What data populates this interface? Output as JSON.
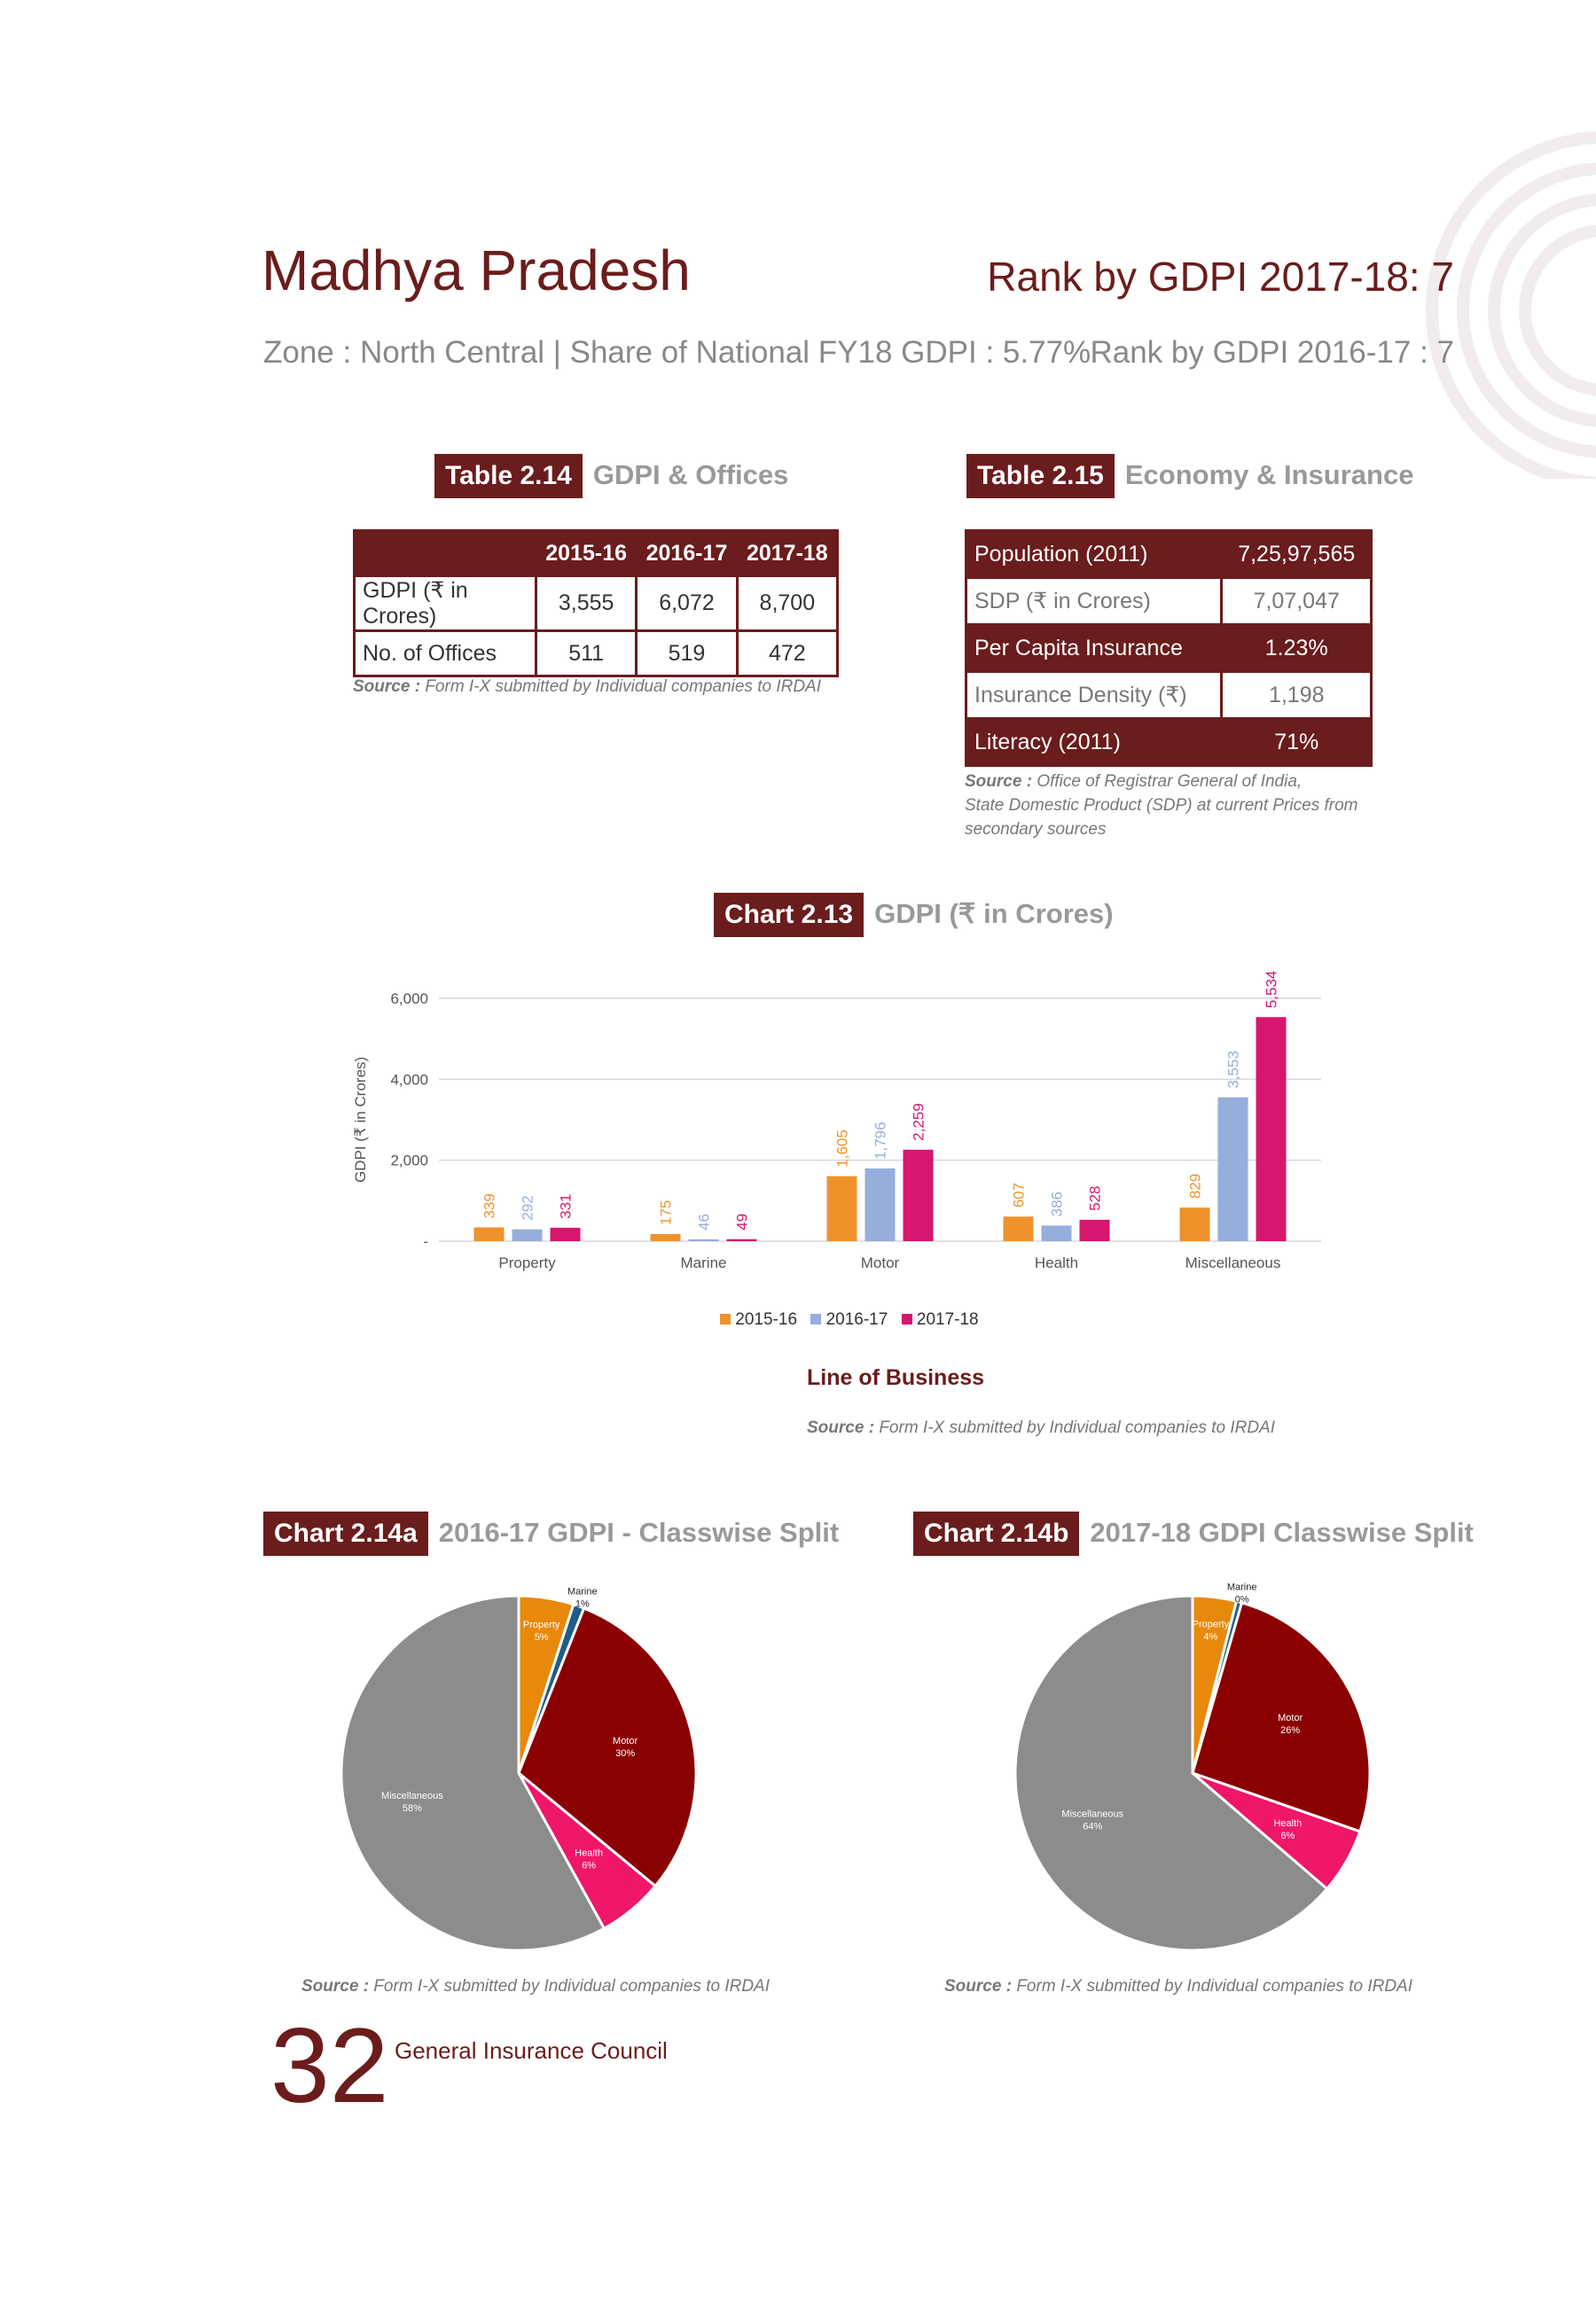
{
  "header": {
    "state": "Madhya Pradesh",
    "rank_fy18": "Rank by GDPI 2017-18: 7",
    "zone_share": "Zone : North Central | Share of National FY18 GDPI : 5.77%",
    "rank_fy17": "Rank by GDPI 2016-17 : 7"
  },
  "table_2_14": {
    "tag": "Table 2.14",
    "title": "GDPI & Offices",
    "columns": [
      "2015-16",
      "2016-17",
      "2017-18"
    ],
    "rows": [
      {
        "label": "GDPI (₹ in Crores)",
        "values": [
          "3,555",
          "6,072",
          "8,700"
        ]
      },
      {
        "label": "No. of Offices",
        "values": [
          "511",
          "519",
          "472"
        ]
      }
    ],
    "source_label": "Source :",
    "source_text": "Form I-X submitted by Individual companies to IRDAI"
  },
  "table_2_15": {
    "tag": "Table 2.15",
    "title": "Economy & Insurance",
    "rows": [
      {
        "label": "Population (2011)",
        "value": "7,25,97,565"
      },
      {
        "label": "SDP (₹ in Crores)",
        "value": "7,07,047"
      },
      {
        "label": "Per Capita Insurance",
        "value": "1.23%"
      },
      {
        "label": "Insurance Density (₹)",
        "value": "1,198"
      },
      {
        "label": "Literacy (2011)",
        "value": "71%"
      }
    ],
    "source_label": "Source :",
    "source_line1": "Office of Registrar General of India,",
    "source_line2": "State Domestic Product (SDP) at current Prices from",
    "source_line3": "secondary sources"
  },
  "chart_2_13": {
    "tag": "Chart 2.13",
    "title": "GDPI (₹ in Crores)",
    "ylabel": "GDPI (₹ in Crores)",
    "xlabel": "Line of Business",
    "source_label": "Source :",
    "source_text": "Form I-X submitted by Individual companies to IRDAI",
    "yticks": [
      "-",
      "2,000",
      "4,000",
      "6,000"
    ]
  },
  "chart_2_14a": {
    "tag": "Chart 2.14a",
    "title": "2016-17 GDPI - Classwise Split",
    "source_label": "Source :",
    "source_text": "Form I-X submitted by Individual companies to IRDAI"
  },
  "chart_2_14b": {
    "tag": "Chart 2.14b",
    "title": "2017-18 GDPI Classwise Split",
    "source_label": "Source :",
    "source_text": "Form I-X submitted by Individual companies to IRDAI"
  },
  "footer": {
    "page_number": "32",
    "publisher": "General Insurance Council"
  },
  "colors": {
    "maroon": "#6b1c1c",
    "s2015": "#f0922b",
    "s2016": "#95aedb",
    "s2017": "#d6166f",
    "property": "#e8890c",
    "marine": "#1f5c8a",
    "motor": "#8b0000",
    "health": "#f0166a",
    "misc": "#8c8c8c"
  },
  "chart_data": [
    {
      "type": "bar",
      "categories": [
        "Property",
        "Marine",
        "Motor",
        "Health",
        "Miscellaneous"
      ],
      "series": [
        {
          "name": "2015-16",
          "values": [
            339,
            175,
            1605,
            607,
            829
          ],
          "labels": [
            "339",
            "175",
            "1,605",
            "607",
            "829"
          ]
        },
        {
          "name": "2016-17",
          "values": [
            292,
            46,
            1796,
            386,
            3553
          ],
          "labels": [
            "292",
            "46",
            "1,796",
            "386",
            "3,553"
          ]
        },
        {
          "name": "2017-18",
          "values": [
            331,
            49,
            2259,
            528,
            5534
          ],
          "labels": [
            "331",
            "49",
            "2,259",
            "528",
            "5,534"
          ]
        }
      ],
      "title": "GDPI (₹ in Crores)",
      "xlabel": "Line of Business",
      "ylabel": "GDPI (₹ in Crores)",
      "ylim": [
        0,
        6000
      ],
      "grid": true,
      "legend": "bottom"
    },
    {
      "type": "pie",
      "title": "2016-17 GDPI - Classwise Split",
      "categories": [
        "Property",
        "Marine",
        "Motor",
        "Health",
        "Miscellaneous"
      ],
      "values": [
        5,
        1,
        30,
        6,
        58
      ],
      "labels": [
        "5%",
        "1%",
        "30%",
        "6%",
        "58%"
      ]
    },
    {
      "type": "pie",
      "title": "2017-18 GDPI Classwise Split",
      "categories": [
        "Property",
        "Marine",
        "Motor",
        "Health",
        "Miscellaneous"
      ],
      "values": [
        4,
        0.5,
        26,
        6,
        64
      ],
      "labels": [
        "4%",
        "0%",
        "26%",
        "6%",
        "64%"
      ]
    }
  ]
}
